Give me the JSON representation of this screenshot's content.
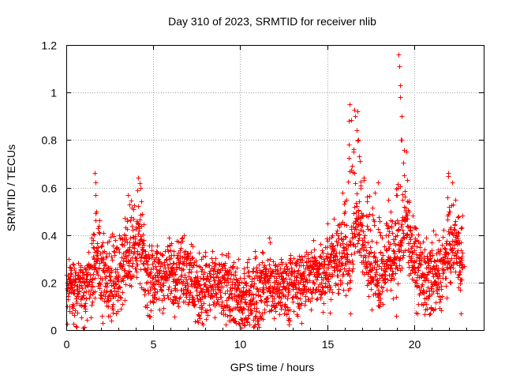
{
  "chart_data": {
    "type": "scatter",
    "title": "Day 310 of 2023, SRMTID for receiver nlib",
    "xlabel": "GPS time / hours",
    "ylabel": "SRMTID / TECUs",
    "xlim": [
      0,
      24
    ],
    "ylim": [
      0,
      1.2
    ],
    "xticks": [
      0,
      5,
      10,
      15,
      20
    ],
    "xtick_labels": [
      "0",
      "5",
      "10",
      "15",
      "20"
    ],
    "yticks": [
      0,
      0.2,
      0.4,
      0.6,
      0.8,
      1.0,
      1.2
    ],
    "ytick_labels": [
      "0",
      "0.2",
      "0.4",
      "0.6",
      "0.8",
      "1",
      "1.2"
    ],
    "grid": true,
    "marker": "+",
    "color": "#ff0000",
    "series": [
      {
        "name": "SRMTID",
        "profile_hours": [
          0,
          1.0,
          1.5,
          1.7,
          2.0,
          3.0,
          3.6,
          4.2,
          4.6,
          5.0,
          6.0,
          6.8,
          7.5,
          8.5,
          9.5,
          10.0,
          10.5,
          11.0,
          11.5,
          12.0,
          13.0,
          14.0,
          14.5,
          15.0,
          15.8,
          16.3,
          16.7,
          17.2,
          18.0,
          18.5,
          19.0,
          19.2,
          19.5,
          20.0,
          20.5,
          21.0,
          21.5,
          22.0,
          22.3,
          22.8
        ],
        "profile_median": [
          0.15,
          0.16,
          0.2,
          0.3,
          0.18,
          0.22,
          0.3,
          0.35,
          0.2,
          0.2,
          0.22,
          0.25,
          0.15,
          0.16,
          0.14,
          0.1,
          0.12,
          0.14,
          0.18,
          0.16,
          0.18,
          0.2,
          0.22,
          0.25,
          0.27,
          0.32,
          0.45,
          0.3,
          0.2,
          0.28,
          0.3,
          0.35,
          0.45,
          0.25,
          0.2,
          0.18,
          0.22,
          0.3,
          0.35,
          0.25
        ],
        "profile_max": [
          0.3,
          0.28,
          0.4,
          0.66,
          0.42,
          0.4,
          0.56,
          0.64,
          0.35,
          0.38,
          0.38,
          0.4,
          0.33,
          0.34,
          0.33,
          0.3,
          0.3,
          0.38,
          0.3,
          0.3,
          0.32,
          0.35,
          0.4,
          0.45,
          0.5,
          0.95,
          0.92,
          0.6,
          0.62,
          0.55,
          0.7,
          1.16,
          0.75,
          0.45,
          0.38,
          0.42,
          0.42,
          0.66,
          0.6,
          0.48
        ],
        "points": [
          [
            0.1,
            0.13
          ],
          [
            0.15,
            0.3
          ],
          [
            0.2,
            0.08
          ],
          [
            0.3,
            0.18
          ],
          [
            0.45,
            0.26
          ],
          [
            0.6,
            0.12
          ],
          [
            0.8,
            0.22
          ],
          [
            1.0,
            0.1
          ],
          [
            1.2,
            0.19
          ],
          [
            1.55,
            0.38
          ],
          [
            1.65,
            0.66
          ],
          [
            1.68,
            0.62
          ],
          [
            1.7,
            0.57
          ],
          [
            1.72,
            0.5
          ],
          [
            1.8,
            0.43
          ],
          [
            1.9,
            0.41
          ],
          [
            2.05,
            0.22
          ],
          [
            2.3,
            0.12
          ],
          [
            2.6,
            0.31
          ],
          [
            3.0,
            0.18
          ],
          [
            3.4,
            0.33
          ],
          [
            3.55,
            0.57
          ],
          [
            3.65,
            0.53
          ],
          [
            3.75,
            0.44
          ],
          [
            3.9,
            0.36
          ],
          [
            4.1,
            0.59
          ],
          [
            4.15,
            0.64
          ],
          [
            4.25,
            0.6
          ],
          [
            4.35,
            0.49
          ],
          [
            4.55,
            0.1
          ],
          [
            4.8,
            0.24
          ],
          [
            5.3,
            0.3
          ],
          [
            5.9,
            0.39
          ],
          [
            6.4,
            0.2
          ],
          [
            6.75,
            0.4
          ],
          [
            6.9,
            0.3
          ],
          [
            7.2,
            0.12
          ],
          [
            7.6,
            0.06
          ],
          [
            8.0,
            0.33
          ],
          [
            8.5,
            0.21
          ],
          [
            8.9,
            0.14
          ],
          [
            9.3,
            0.31
          ],
          [
            9.6,
            0.05
          ],
          [
            9.9,
            0.03
          ],
          [
            10.05,
            0.01
          ],
          [
            10.2,
            0.09
          ],
          [
            10.5,
            0.3
          ],
          [
            10.9,
            0.06
          ],
          [
            11.2,
            0.24
          ],
          [
            11.5,
            0.13
          ],
          [
            11.65,
            0.39
          ],
          [
            11.7,
            0.37
          ],
          [
            12.0,
            0.08
          ],
          [
            12.4,
            0.28
          ],
          [
            12.8,
            0.05
          ],
          [
            13.2,
            0.21
          ],
          [
            13.5,
            0.03
          ],
          [
            13.8,
            0.33
          ],
          [
            14.2,
            0.38
          ],
          [
            14.6,
            0.14
          ],
          [
            15.0,
            0.45
          ],
          [
            15.2,
            0.32
          ],
          [
            15.6,
            0.4
          ],
          [
            15.9,
            0.58
          ],
          [
            16.0,
            0.5
          ],
          [
            16.1,
            0.55
          ],
          [
            16.25,
            0.88
          ],
          [
            16.28,
            0.95
          ],
          [
            16.35,
            0.07
          ],
          [
            16.55,
            0.66
          ],
          [
            16.6,
            0.9
          ],
          [
            16.7,
            0.84
          ],
          [
            16.75,
            0.92
          ],
          [
            16.8,
            0.8
          ],
          [
            16.85,
            0.73
          ],
          [
            16.9,
            0.6
          ],
          [
            17.0,
            0.48
          ],
          [
            17.2,
            0.28
          ],
          [
            17.5,
            0.2
          ],
          [
            17.9,
            0.62
          ],
          [
            18.0,
            0.1
          ],
          [
            18.3,
            0.27
          ],
          [
            18.5,
            0.55
          ],
          [
            18.7,
            0.44
          ],
          [
            18.95,
            0.06
          ],
          [
            19.05,
            0.6
          ],
          [
            19.1,
            1.16
          ],
          [
            19.13,
            1.11
          ],
          [
            19.17,
            1.03
          ],
          [
            19.2,
            0.98
          ],
          [
            19.3,
            0.8
          ],
          [
            19.4,
            0.65
          ],
          [
            19.55,
            0.75
          ],
          [
            19.6,
            0.63
          ],
          [
            19.7,
            0.5
          ],
          [
            19.8,
            0.42
          ],
          [
            20.0,
            0.29
          ],
          [
            20.3,
            0.15
          ],
          [
            20.6,
            0.34
          ],
          [
            20.9,
            0.07
          ],
          [
            21.1,
            0.42
          ],
          [
            21.4,
            0.24
          ],
          [
            21.8,
            0.32
          ],
          [
            21.95,
            0.66
          ],
          [
            22.05,
            0.5
          ],
          [
            22.2,
            0.62
          ],
          [
            22.35,
            0.55
          ],
          [
            22.5,
            0.38
          ],
          [
            22.7,
            0.07
          ],
          [
            22.85,
            0.27
          ]
        ]
      }
    ]
  }
}
